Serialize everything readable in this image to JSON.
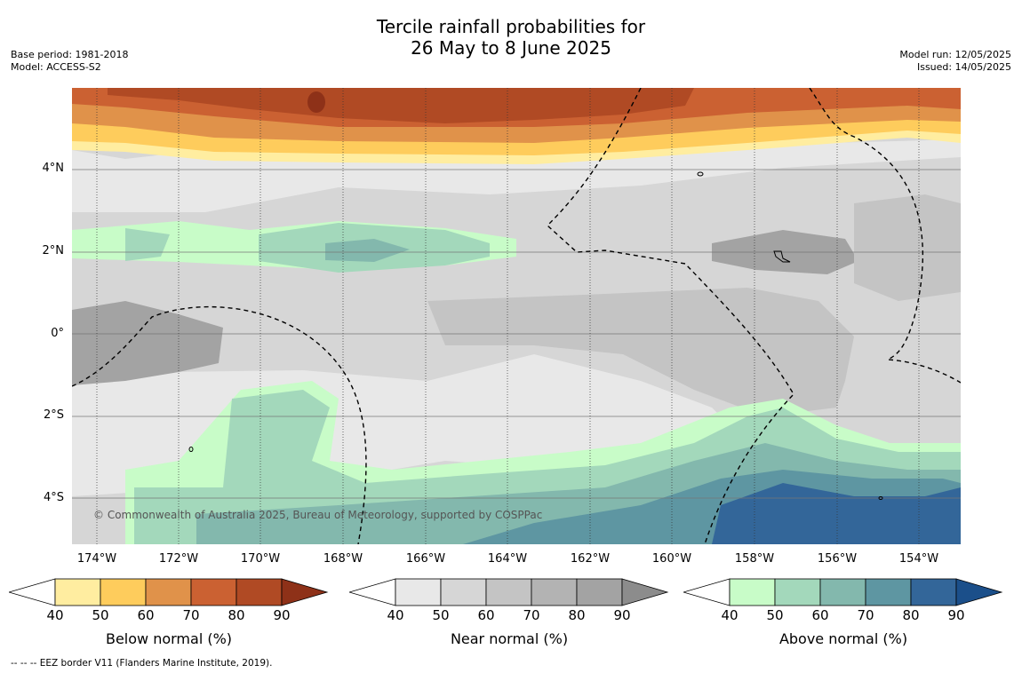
{
  "header": {
    "title_line1": "Tercile rainfall probabilities for",
    "title_line2": "26 May to 8 June 2025",
    "base_period": "Base period: 1981-2018",
    "model": "Model: ACCESS-S2",
    "model_run": "Model run: 12/05/2025",
    "issued": "Issued: 14/05/2025"
  },
  "map": {
    "lat_labels": [
      "4°N",
      "2°N",
      "0°",
      "2°S",
      "4°S"
    ],
    "lon_labels": [
      "174°W",
      "172°W",
      "170°W",
      "168°W",
      "166°W",
      "164°W",
      "162°W",
      "160°W",
      "158°W",
      "156°W",
      "154°W"
    ],
    "copyright": "© Commonwealth of Australia 2025, Bureau of Meteorology, supported by COSPPac",
    "eez_note": "-- -- -- EEZ border V11 (Flanders Marine Institute, 2019)."
  },
  "legends": [
    {
      "caption": "Below normal (%)",
      "ticks": [
        "40",
        "50",
        "60",
        "70",
        "80",
        "90"
      ],
      "colors": [
        "#ffffff",
        "#ffeda0",
        "#fecc5c",
        "#e0924a",
        "#cb6132",
        "#b04a24",
        "#8e3118"
      ]
    },
    {
      "caption": "Near normal (%)",
      "ticks": [
        "40",
        "50",
        "60",
        "70",
        "80",
        "90"
      ],
      "colors": [
        "#ffffff",
        "#e8e8e8",
        "#d6d6d6",
        "#c4c4c4",
        "#b3b3b3",
        "#a3a3a3",
        "#8c8c8c"
      ]
    },
    {
      "caption": "Above normal (%)",
      "ticks": [
        "40",
        "50",
        "60",
        "70",
        "80",
        "90"
      ],
      "colors": [
        "#ffffff",
        "#c8fcc8",
        "#a3d8bb",
        "#83b8ad",
        "#5e96a2",
        "#336699",
        "#1b4f8a"
      ]
    }
  ]
}
